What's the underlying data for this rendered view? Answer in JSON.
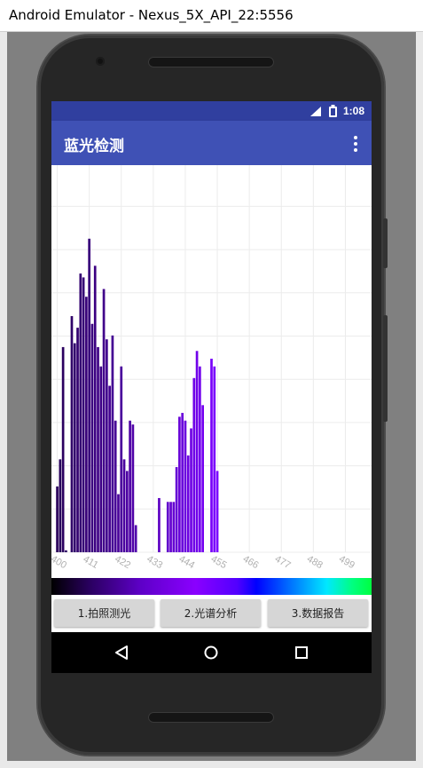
{
  "window": {
    "title": "Android Emulator - Nexus_5X_API_22:5556"
  },
  "status_bar": {
    "time": "1:08",
    "icons": [
      "signal-icon",
      "battery-icon"
    ]
  },
  "app_bar": {
    "title": "蓝光检测",
    "menu_icon": "overflow-menu-icon"
  },
  "chart_data": {
    "type": "bar",
    "title": "",
    "xlabel": "",
    "ylabel": "",
    "x_ticks": [
      "400",
      "411",
      "422",
      "433",
      "444",
      "455",
      "466",
      "477",
      "488",
      "499"
    ],
    "xlim": [
      398,
      508
    ],
    "ylim": [
      0,
      100
    ],
    "grid": true,
    "legend": "none",
    "x": [
      400,
      401,
      402,
      403,
      404,
      405,
      406,
      407,
      408,
      409,
      410,
      411,
      412,
      413,
      414,
      415,
      416,
      417,
      418,
      419,
      420,
      421,
      422,
      423,
      424,
      425,
      426,
      427,
      428,
      429,
      430,
      431,
      432,
      433,
      434,
      435,
      436,
      437,
      438,
      439,
      440,
      441,
      442,
      443,
      444,
      445,
      446,
      447,
      448,
      449,
      450,
      451,
      452,
      453,
      454,
      455
    ],
    "values": [
      17,
      24,
      53,
      0.5,
      0,
      61,
      54,
      58,
      72,
      71,
      66,
      81,
      59,
      74,
      53,
      48,
      68,
      55,
      43,
      56,
      34,
      15,
      48,
      24,
      21,
      34,
      33,
      7,
      0,
      0,
      0,
      0,
      0,
      0,
      0,
      14,
      0,
      0,
      13,
      13,
      13,
      22,
      35,
      36,
      34,
      25,
      32,
      45,
      52,
      48,
      38,
      0,
      0,
      50,
      48,
      21
    ]
  },
  "spectrum_strip": {
    "colors": [
      "#000000",
      "#5e00c8",
      "#8a00ff",
      "#0000ff",
      "#00e8ff",
      "#00ff40"
    ]
  },
  "buttons": {
    "capture": "1.拍照测光",
    "analysis": "2.光谱分析",
    "report": "3.数据报告"
  },
  "nav": {
    "back_icon": "back-icon",
    "home_icon": "home-icon",
    "recents_icon": "recents-icon"
  }
}
